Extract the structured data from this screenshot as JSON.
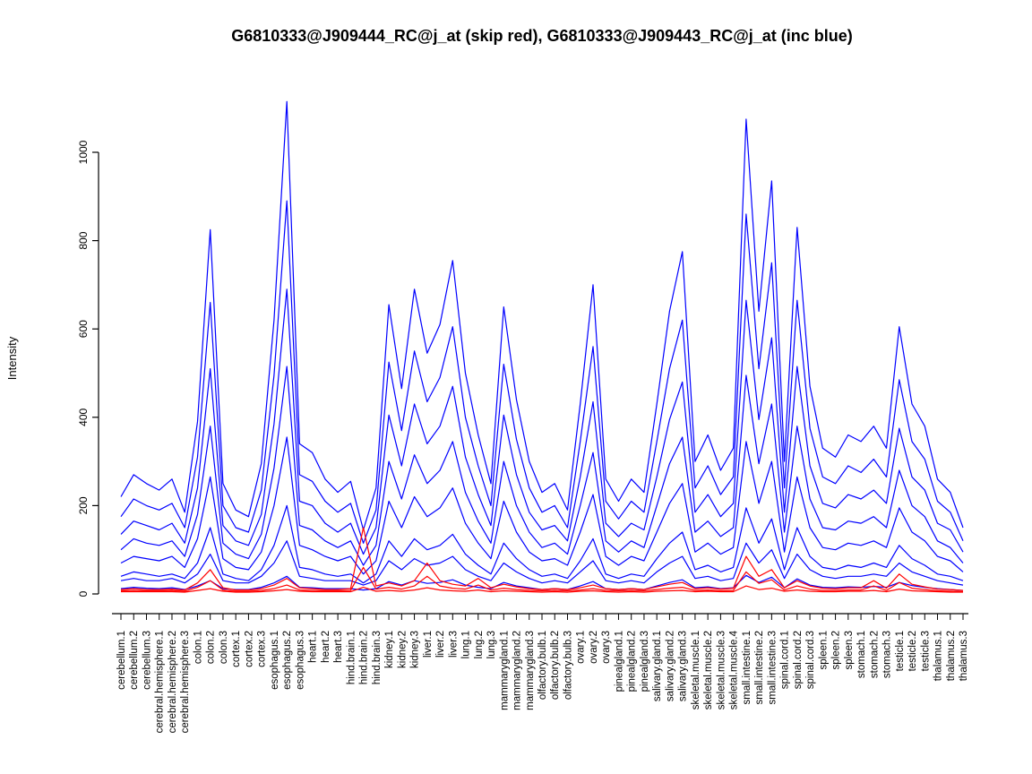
{
  "figure": {
    "background": "#ffffff"
  },
  "chart_data": {
    "type": "line",
    "title": "G6810333@J909444_RC@j_at (skip red), G6810333@J909443_RC@j_at (inc blue)",
    "xlabel": "",
    "ylabel": "Intensity",
    "ylim": [
      0,
      1150
    ],
    "yticks": [
      0,
      200,
      400,
      600,
      800,
      1000
    ],
    "grid": false,
    "legend_position": "none",
    "x_tick_rotation_degrees": 90,
    "probeset_colors": {
      "G6810333@J909444_RC@j_at (skip)": "#ff0000",
      "G6810333@J909443_RC@j_at (inc)": "#0000ff"
    },
    "categories": [
      "cerebellum.1",
      "cerebellum.2",
      "cerebellum.3",
      "cerebral.hemisphere.1",
      "cerebral.hemisphere.2",
      "cerebral.hemisphere.3",
      "colon.1",
      "colon.2",
      "colon.3",
      "cortex.1",
      "cortex.2",
      "cortex.3",
      "esophagus.1",
      "esophagus.2",
      "esophagus.3",
      "heart.1",
      "heart.2",
      "heart.3",
      "hind.brain.1",
      "hind.brain.2",
      "hind.brain.3",
      "kidney.1",
      "kidney.2",
      "kidney.3",
      "liver.1",
      "liver.2",
      "liver.3",
      "lung.1",
      "lung.2",
      "lung.3",
      "mammarygland.1",
      "mammarygland.2",
      "mammarygland.3",
      "olfactory.bulb.1",
      "olfactory.bulb.2",
      "olfactory.bulb.3",
      "ovary.1",
      "ovary.2",
      "ovary.3",
      "pinealgland.1",
      "pinealgland.2",
      "pinealgland.3",
      "salivary.gland.1",
      "salivary.gland.2",
      "salivary.gland.3",
      "skeletal.muscle.1",
      "skeletal.muscle.2",
      "skeletal.muscle.3",
      "skeletal.muscle.4",
      "small.intestine.1",
      "small.intestine.2",
      "small.intestine.3",
      "spinal.cord.1",
      "spinal.cord.2",
      "spinal.cord.3",
      "spleen.1",
      "spleen.2",
      "spleen.3",
      "stomach.1",
      "stomach.2",
      "stomach.3",
      "testicle.1",
      "testicle.2",
      "testicle.3",
      "thalamus.1",
      "thalamus.2",
      "thalamus.3"
    ],
    "series": [
      {
        "name": "inc-1",
        "probeset": "G6810333@J909443_RC@j_at",
        "color": "#0000ff",
        "values": [
          220,
          270,
          250,
          235,
          260,
          185,
          390,
          825,
          250,
          190,
          175,
          295,
          620,
          1115,
          340,
          320,
          260,
          230,
          255,
          145,
          240,
          655,
          465,
          690,
          545,
          610,
          755,
          500,
          360,
          250,
          650,
          440,
          300,
          230,
          250,
          190,
          430,
          700,
          260,
          210,
          260,
          230,
          430,
          640,
          775,
          300,
          360,
          280,
          330,
          1075,
          640,
          935,
          300,
          830,
          470,
          330,
          310,
          360,
          345,
          380,
          330,
          605,
          430,
          380,
          260,
          230,
          150
        ]
      },
      {
        "name": "inc-2",
        "probeset": "G6810333@J909443_RC@j_at",
        "color": "#0000ff",
        "values": [
          175,
          215,
          200,
          190,
          205,
          150,
          310,
          660,
          200,
          150,
          140,
          235,
          495,
          890,
          270,
          255,
          210,
          185,
          205,
          115,
          190,
          525,
          370,
          550,
          435,
          490,
          605,
          400,
          290,
          200,
          520,
          350,
          240,
          185,
          200,
          150,
          345,
          560,
          210,
          170,
          210,
          185,
          345,
          510,
          620,
          240,
          290,
          225,
          265,
          860,
          510,
          750,
          240,
          665,
          375,
          265,
          250,
          290,
          275,
          305,
          265,
          485,
          345,
          305,
          210,
          185,
          120
        ]
      },
      {
        "name": "inc-3",
        "probeset": "G6810333@J909443_RC@j_at",
        "color": "#0000ff",
        "values": [
          135,
          165,
          155,
          145,
          160,
          115,
          240,
          510,
          155,
          120,
          110,
          180,
          385,
          690,
          210,
          200,
          160,
          140,
          160,
          90,
          150,
          405,
          290,
          430,
          340,
          380,
          470,
          310,
          225,
          155,
          405,
          270,
          185,
          145,
          155,
          120,
          265,
          435,
          160,
          130,
          160,
          145,
          265,
          395,
          480,
          185,
          225,
          175,
          205,
          665,
          395,
          580,
          185,
          515,
          290,
          205,
          195,
          225,
          215,
          235,
          205,
          375,
          265,
          235,
          160,
          145,
          95
        ]
      },
      {
        "name": "inc-4",
        "probeset": "G6810333@J909443_RC@j_at",
        "color": "#0000ff",
        "values": [
          100,
          125,
          115,
          110,
          120,
          85,
          180,
          380,
          115,
          90,
          80,
          135,
          285,
          515,
          155,
          145,
          120,
          105,
          120,
          65,
          110,
          300,
          215,
          315,
          250,
          280,
          345,
          230,
          165,
          115,
          300,
          200,
          140,
          105,
          115,
          90,
          200,
          320,
          120,
          95,
          120,
          105,
          200,
          295,
          355,
          140,
          165,
          130,
          150,
          495,
          295,
          430,
          140,
          380,
          215,
          150,
          145,
          165,
          160,
          175,
          150,
          280,
          200,
          175,
          120,
          105,
          70
        ]
      },
      {
        "name": "inc-5",
        "probeset": "G6810333@J909443_RC@j_at",
        "color": "#0000ff",
        "values": [
          70,
          85,
          80,
          75,
          85,
          60,
          125,
          265,
          80,
          60,
          55,
          95,
          200,
          355,
          110,
          100,
          85,
          75,
          85,
          45,
          75,
          210,
          150,
          220,
          175,
          195,
          240,
          160,
          115,
          80,
          210,
          140,
          95,
          75,
          80,
          65,
          140,
          225,
          85,
          65,
          85,
          75,
          140,
          205,
          250,
          95,
          115,
          90,
          105,
          345,
          205,
          300,
          95,
          265,
          150,
          105,
          100,
          115,
          110,
          120,
          105,
          195,
          140,
          120,
          85,
          75,
          50
        ]
      },
      {
        "name": "inc-6",
        "probeset": "G6810333@J909443_RC@j_at",
        "color": "#0000ff",
        "values": [
          40,
          50,
          45,
          40,
          45,
          35,
          70,
          150,
          45,
          35,
          30,
          55,
          110,
          200,
          60,
          55,
          45,
          40,
          45,
          25,
          45,
          120,
          85,
          125,
          100,
          110,
          135,
          90,
          65,
          45,
          115,
          80,
          55,
          40,
          45,
          35,
          75,
          125,
          45,
          35,
          45,
          40,
          80,
          115,
          140,
          55,
          65,
          50,
          60,
          195,
          115,
          170,
          55,
          150,
          85,
          60,
          55,
          65,
          60,
          70,
          60,
          110,
          80,
          65,
          45,
          40,
          30
        ]
      },
      {
        "name": "inc-7",
        "probeset": "G6810333@J909443_RC@j_at",
        "color": "#0000ff",
        "values": [
          30,
          35,
          30,
          30,
          35,
          25,
          45,
          90,
          30,
          25,
          25,
          40,
          70,
          120,
          40,
          35,
          30,
          30,
          30,
          20,
          30,
          75,
          55,
          80,
          65,
          70,
          85,
          55,
          40,
          30,
          70,
          50,
          35,
          25,
          30,
          25,
          50,
          75,
          30,
          25,
          30,
          25,
          50,
          70,
          85,
          35,
          40,
          30,
          35,
          115,
          70,
          100,
          35,
          90,
          55,
          40,
          35,
          40,
          40,
          45,
          40,
          70,
          50,
          40,
          30,
          25,
          20
        ]
      },
      {
        "name": "inc-8",
        "probeset": "G6810333@J909443_RC@j_at",
        "color": "#0000ff",
        "values": [
          12,
          15,
          13,
          12,
          14,
          10,
          18,
          30,
          12,
          10,
          10,
          15,
          25,
          40,
          15,
          14,
          12,
          12,
          12,
          9,
          12,
          28,
          20,
          30,
          24,
          26,
          32,
          20,
          15,
          12,
          26,
          18,
          14,
          10,
          12,
          10,
          18,
          28,
          12,
          10,
          12,
          10,
          18,
          26,
          32,
          14,
          16,
          12,
          14,
          42,
          26,
          38,
          14,
          34,
          20,
          15,
          14,
          16,
          15,
          17,
          15,
          26,
          19,
          15,
          12,
          10,
          8
        ]
      },
      {
        "name": "skip-1",
        "probeset": "G6810333@J909444_RC@j_at",
        "color": "#ff0000",
        "values": [
          10,
          12,
          10,
          10,
          11,
          9,
          25,
          55,
          14,
          9,
          9,
          12,
          20,
          35,
          14,
          12,
          10,
          10,
          12,
          150,
          18,
          25,
          18,
          30,
          70,
          30,
          22,
          18,
          35,
          14,
          22,
          16,
          12,
          10,
          12,
          10,
          14,
          20,
          12,
          10,
          12,
          10,
          16,
          22,
          26,
          12,
          14,
          11,
          13,
          85,
          40,
          55,
          14,
          30,
          18,
          13,
          12,
          14,
          14,
          30,
          13,
          45,
          22,
          16,
          11,
          10,
          8
        ]
      },
      {
        "name": "skip-2",
        "probeset": "G6810333@J909444_RC@j_at",
        "color": "#ff0000",
        "values": [
          7,
          8,
          7,
          7,
          8,
          6,
          15,
          30,
          9,
          6,
          6,
          8,
          12,
          20,
          9,
          8,
          7,
          7,
          8,
          60,
          11,
          15,
          11,
          18,
          40,
          18,
          13,
          11,
          20,
          9,
          13,
          10,
          8,
          7,
          8,
          7,
          9,
          12,
          8,
          7,
          8,
          7,
          10,
          13,
          15,
          8,
          9,
          7,
          8,
          50,
          24,
          32,
          9,
          18,
          11,
          8,
          8,
          9,
          9,
          18,
          8,
          26,
          13,
          10,
          7,
          6,
          5
        ]
      },
      {
        "name": "skip-3",
        "probeset": "G6810333@J909444_RC@j_at",
        "color": "#ff0000",
        "values": [
          5,
          5,
          5,
          5,
          5,
          4,
          8,
          12,
          6,
          4,
          4,
          5,
          7,
          10,
          6,
          5,
          5,
          5,
          5,
          15,
          6,
          8,
          6,
          9,
          14,
          9,
          7,
          6,
          9,
          5,
          7,
          6,
          5,
          4,
          5,
          4,
          6,
          7,
          5,
          4,
          5,
          4,
          6,
          7,
          8,
          5,
          6,
          5,
          5,
          18,
          10,
          13,
          6,
          9,
          6,
          5,
          5,
          6,
          6,
          8,
          5,
          11,
          7,
          6,
          5,
          4,
          4
        ]
      }
    ]
  }
}
